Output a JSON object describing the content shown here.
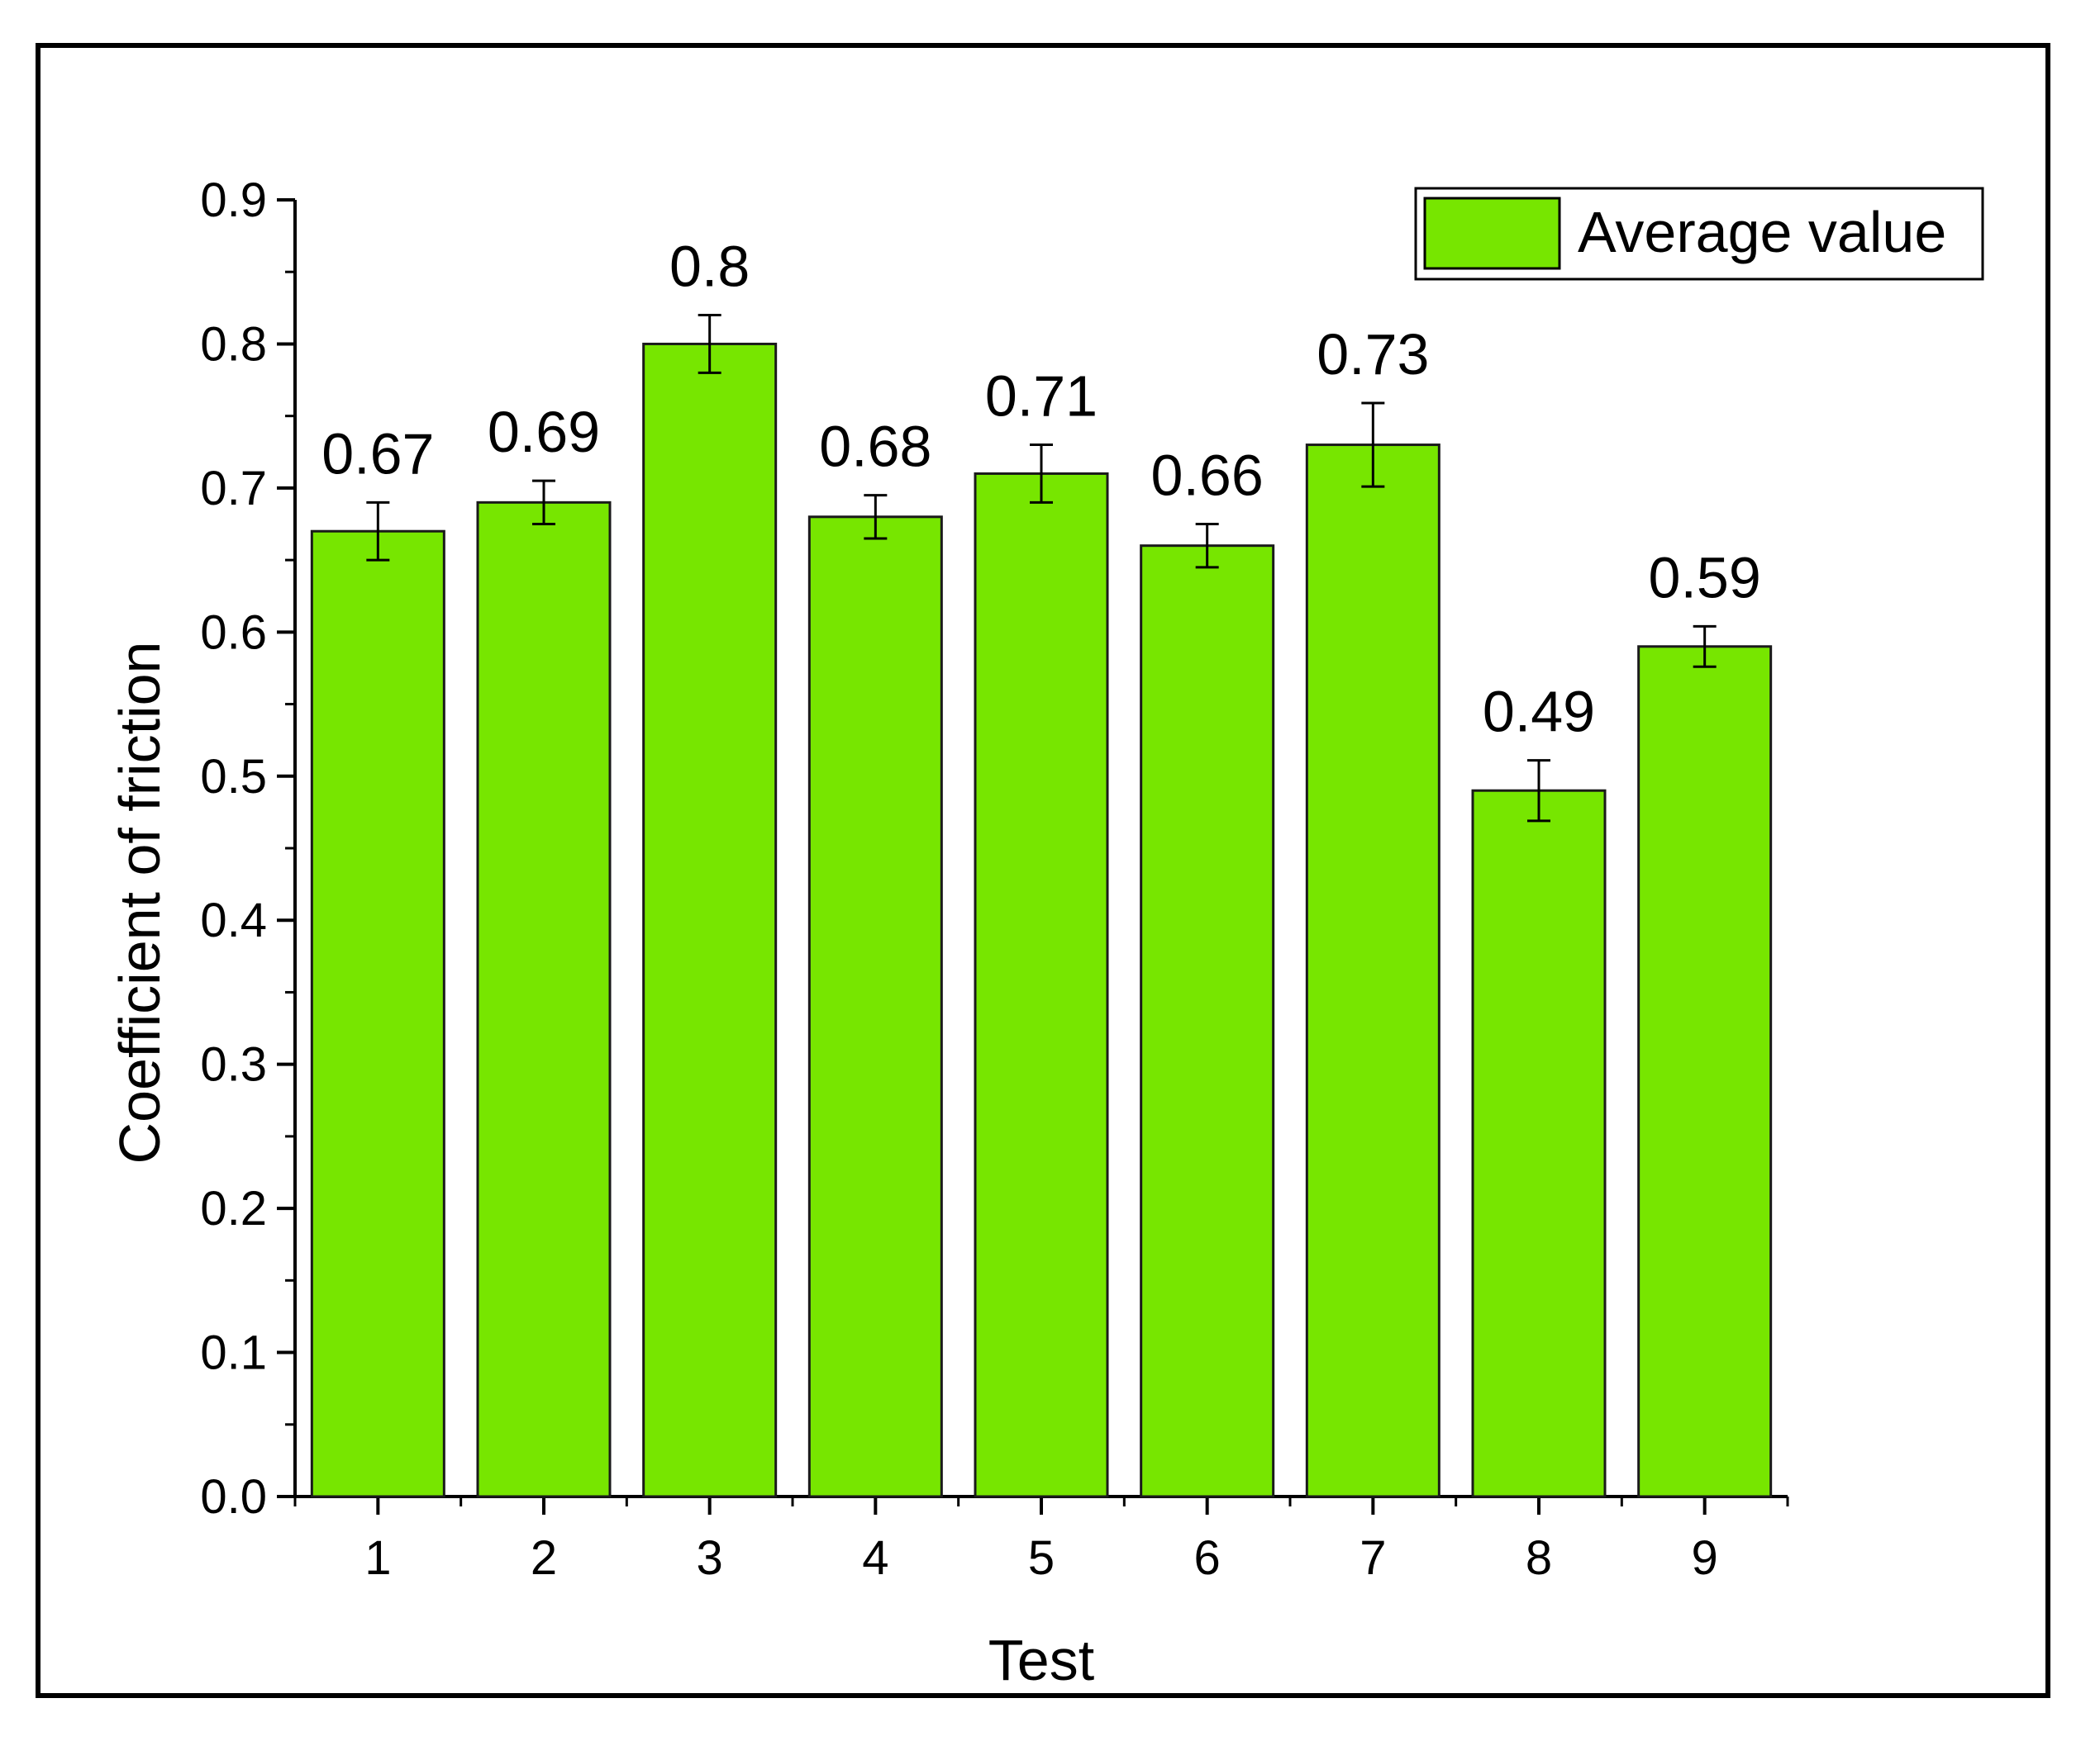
{
  "chart_data": {
    "type": "bar",
    "title": "",
    "xlabel": "Test",
    "ylabel": "Coefficient of friction",
    "categories": [
      "1",
      "2",
      "3",
      "4",
      "5",
      "6",
      "7",
      "8",
      "9"
    ],
    "series": [
      {
        "name": "Average value",
        "values": [
          0.67,
          0.69,
          0.8,
          0.68,
          0.71,
          0.66,
          0.73,
          0.49,
          0.59
        ],
        "error": [
          0.02,
          0.015,
          0.02,
          0.015,
          0.02,
          0.015,
          0.029,
          0.021,
          0.014
        ],
        "color": "#77E600"
      }
    ],
    "data_labels": [
      "0.67",
      "0.69",
      "0.8",
      "0.68",
      "0.71",
      "0.66",
      "0.73",
      "0.49",
      "0.59"
    ],
    "ylim": [
      0,
      0.9
    ],
    "yticks": [
      "0.0",
      "0.1",
      "0.2",
      "0.3",
      "0.4",
      "0.5",
      "0.6",
      "0.7",
      "0.8",
      "0.9"
    ],
    "grid": false,
    "legend": "top-right"
  },
  "colors": {
    "bar_fill": "#77E600",
    "bar_stroke": "#1a1a1a",
    "frame": "#000000"
  }
}
